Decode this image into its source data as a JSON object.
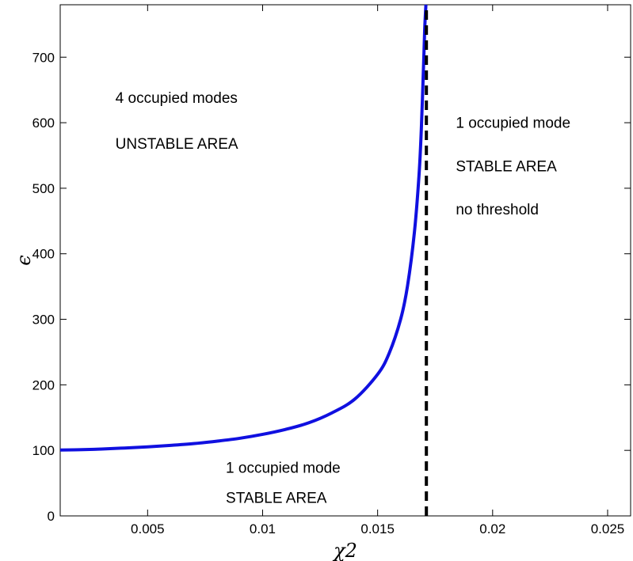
{
  "chart_data": {
    "type": "line",
    "xlabel": "χ2",
    "ylabel": "ϵ",
    "xlim": [
      0.0012,
      0.026
    ],
    "ylim": [
      0,
      780
    ],
    "xticks": [
      0.005,
      0.01,
      0.015,
      0.02,
      0.025
    ],
    "xtick_labels": [
      "0.005",
      "0.01",
      "0.015",
      "0.02",
      "0.025"
    ],
    "yticks": [
      0,
      100,
      200,
      300,
      400,
      500,
      600,
      700
    ],
    "ytick_labels": [
      "0",
      "100",
      "200",
      "300",
      "400",
      "500",
      "600",
      "700"
    ],
    "grid": false,
    "series": [
      {
        "style": "solid",
        "color": "#1010e0",
        "x": [
          0.0012,
          0.002,
          0.003,
          0.004,
          0.005,
          0.006,
          0.007,
          0.008,
          0.009,
          0.01,
          0.011,
          0.012,
          0.013,
          0.014,
          0.015,
          0.0155,
          0.016,
          0.0163,
          0.0166,
          0.0168,
          0.0169,
          0.017,
          0.01705,
          0.0171
        ],
        "y": [
          100.5,
          101,
          102,
          103.6,
          105.4,
          107.6,
          110.3,
          114,
          118.4,
          124.4,
          132,
          142,
          157,
          178,
          216,
          248,
          300,
          351,
          433,
          520,
          590,
          690,
          745,
          780
        ]
      },
      {
        "style": "dashed",
        "color": "#000000",
        "x": [
          0.01712,
          0.01712
        ],
        "y": [
          0,
          780
        ]
      }
    ],
    "annotations": [
      {
        "text": "4 occupied modes",
        "x": 0.0036,
        "y": 630
      },
      {
        "text": "UNSTABLE AREA",
        "x": 0.0036,
        "y": 560
      },
      {
        "text": "1 occupied mode",
        "x": 0.0184,
        "y": 592
      },
      {
        "text": "STABLE AREA",
        "x": 0.0184,
        "y": 526
      },
      {
        "text": "no threshold",
        "x": 0.0184,
        "y": 460
      },
      {
        "text": "1 occupied mode",
        "x": 0.0084,
        "y": 66
      },
      {
        "text": "STABLE AREA",
        "x": 0.0084,
        "y": 20
      }
    ]
  }
}
